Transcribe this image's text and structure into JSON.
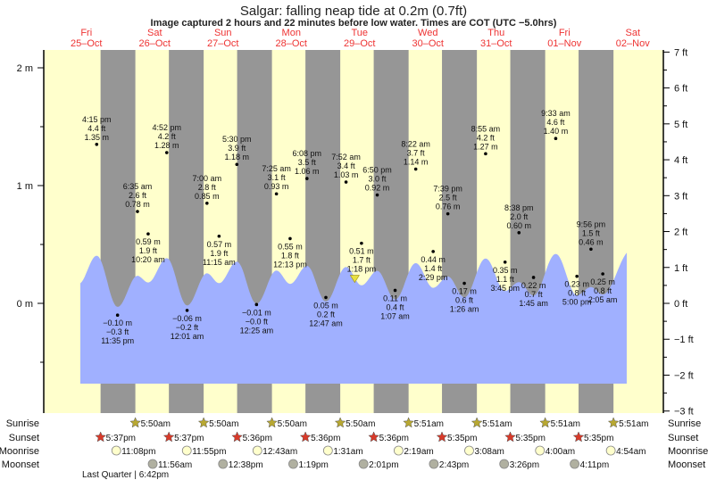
{
  "chart_data": {
    "type": "line",
    "title": "Salgar: falling  neap tide at 0.2m (0.7ft)",
    "subtitle": "Image captured 2 hours and 22 minutes before low water. Times are COT (UTC −5.0hrs)",
    "days": [
      {
        "name": "Fri",
        "date": "25–Oct"
      },
      {
        "name": "Sat",
        "date": "26–Oct"
      },
      {
        "name": "Sun",
        "date": "27–Oct"
      },
      {
        "name": "Mon",
        "date": "28–Oct"
      },
      {
        "name": "Tue",
        "date": "29–Oct"
      },
      {
        "name": "Wed",
        "date": "30–Oct"
      },
      {
        "name": "Thu",
        "date": "31–Oct"
      },
      {
        "name": "Fri",
        "date": "01–Nov"
      },
      {
        "name": "Sat",
        "date": "02–Nov"
      }
    ],
    "left_axis": {
      "unit": "m",
      "ticks": [
        "2 m",
        "1 m",
        "0 m"
      ],
      "values": [
        2,
        1,
        0
      ]
    },
    "right_axis": {
      "unit": "ft",
      "ticks": [
        "7 ft",
        "6 ft",
        "5 ft",
        "4 ft",
        "3 ft",
        "2 ft",
        "1 ft",
        "0 ft",
        "−1 ft",
        "−2 ft",
        "−3 ft"
      ],
      "values": [
        7,
        6,
        5,
        4,
        3,
        2,
        1,
        0,
        -1,
        -2,
        -3
      ]
    },
    "extremes": [
      {
        "day": 0,
        "time": "4:15 pm",
        "ft": "4.4 ft",
        "m": "1.35 m",
        "value": 1.35,
        "type": "high"
      },
      {
        "day": 0,
        "time": "11:35 pm",
        "ft": "−0.3 ft",
        "m": "−0.10 m",
        "value": -0.1,
        "type": "low"
      },
      {
        "day": 1,
        "time": "6:35 am",
        "ft": "2.6 ft",
        "m": "0.78 m",
        "value": 0.78,
        "type": "high"
      },
      {
        "day": 1,
        "time": "10:20 am",
        "ft": "1.9 ft",
        "m": "0.59 m",
        "value": 0.59,
        "type": "low"
      },
      {
        "day": 1,
        "time": "4:52 pm",
        "ft": "4.2 ft",
        "m": "1.28 m",
        "value": 1.28,
        "type": "high"
      },
      {
        "day": 2,
        "time": "12:01 am",
        "ft": "−0.2 ft",
        "m": "−0.06 m",
        "value": -0.06,
        "type": "low"
      },
      {
        "day": 2,
        "time": "7:00 am",
        "ft": "2.8 ft",
        "m": "0.85 m",
        "value": 0.85,
        "type": "high"
      },
      {
        "day": 2,
        "time": "11:15 am",
        "ft": "1.9 ft",
        "m": "0.57 m",
        "value": 0.57,
        "type": "low"
      },
      {
        "day": 2,
        "time": "5:30 pm",
        "ft": "3.9 ft",
        "m": "1.18 m",
        "value": 1.18,
        "type": "high"
      },
      {
        "day": 3,
        "time": "12:25 am",
        "ft": "−0.0 ft",
        "m": "−0.01 m",
        "value": -0.01,
        "type": "low"
      },
      {
        "day": 3,
        "time": "7:25 am",
        "ft": "3.1 ft",
        "m": "0.93 m",
        "value": 0.93,
        "type": "high"
      },
      {
        "day": 3,
        "time": "12:13 pm",
        "ft": "1.8 ft",
        "m": "0.55 m",
        "value": 0.55,
        "type": "low"
      },
      {
        "day": 3,
        "time": "6:08 pm",
        "ft": "3.5 ft",
        "m": "1.06 m",
        "value": 1.06,
        "type": "high"
      },
      {
        "day": 4,
        "time": "12:47 am",
        "ft": "0.2 ft",
        "m": "0.05 m",
        "value": 0.05,
        "type": "low"
      },
      {
        "day": 4,
        "time": "7:52 am",
        "ft": "3.4 ft",
        "m": "1.03 m",
        "value": 1.03,
        "type": "high"
      },
      {
        "day": 4,
        "time": "1:18 pm",
        "ft": "1.7 ft",
        "m": "0.51 m",
        "value": 0.51,
        "type": "low"
      },
      {
        "day": 4,
        "time": "6:50 pm",
        "ft": "3.0 ft",
        "m": "0.92 m",
        "value": 0.92,
        "type": "high"
      },
      {
        "day": 5,
        "time": "1:07 am",
        "ft": "0.4 ft",
        "m": "0.11 m",
        "value": 0.11,
        "type": "low"
      },
      {
        "day": 5,
        "time": "8:22 am",
        "ft": "3.7 ft",
        "m": "1.14 m",
        "value": 1.14,
        "type": "high"
      },
      {
        "day": 5,
        "time": "2:29 pm",
        "ft": "1.4 ft",
        "m": "0.44 m",
        "value": 0.44,
        "type": "low"
      },
      {
        "day": 5,
        "time": "7:39 pm",
        "ft": "2.5 ft",
        "m": "0.76 m",
        "value": 0.76,
        "type": "high"
      },
      {
        "day": 6,
        "time": "1:26 am",
        "ft": "0.6 ft",
        "m": "0.17 m",
        "value": 0.17,
        "type": "low"
      },
      {
        "day": 6,
        "time": "8:55 am",
        "ft": "4.2 ft",
        "m": "1.27 m",
        "value": 1.27,
        "type": "high"
      },
      {
        "day": 6,
        "time": "3:45 pm",
        "ft": "1.1 ft",
        "m": "0.35 m",
        "value": 0.35,
        "type": "low"
      },
      {
        "day": 6,
        "time": "8:38 pm",
        "ft": "2.0 ft",
        "m": "0.60 m",
        "value": 0.6,
        "type": "high"
      },
      {
        "day": 7,
        "time": "1:45 am",
        "ft": "0.7 ft",
        "m": "0.22 m",
        "value": 0.22,
        "type": "low"
      },
      {
        "day": 7,
        "time": "9:33 am",
        "ft": "4.6 ft",
        "m": "1.40 m",
        "value": 1.4,
        "type": "high"
      },
      {
        "day": 7,
        "time": "5:00 pm",
        "ft": "0.8 ft",
        "m": "0.23 m",
        "value": 0.23,
        "type": "low"
      },
      {
        "day": 7,
        "time": "9:56 pm",
        "ft": "1.5 ft",
        "m": "0.46 m",
        "value": 0.46,
        "type": "high"
      },
      {
        "day": 8,
        "time": "2:05 am",
        "ft": "0.8 ft",
        "m": "0.25 m",
        "value": 0.25,
        "type": "low"
      }
    ],
    "current": {
      "day": 4,
      "time": "10:56 am",
      "value": 0.2
    },
    "colors": {
      "day": "#ffffcc",
      "night": "#969696",
      "water": "#a0b0ff",
      "day_label": "#ee3333",
      "sunrise_icon": "#b8a832",
      "sunset_icon": "#d83a2a",
      "moonrise_icon": "#ffffcc",
      "moonset_icon": "#b0b0a0",
      "marker": "#e8e040"
    }
  },
  "astro": {
    "labels": {
      "sunrise": "Sunrise",
      "sunset": "Sunset",
      "moonrise": "Moonrise",
      "moonset": "Moonset"
    },
    "sunrise": [
      {
        "day": 1,
        "time": "5:50am"
      },
      {
        "day": 2,
        "time": "5:50am"
      },
      {
        "day": 3,
        "time": "5:50am"
      },
      {
        "day": 4,
        "time": "5:50am"
      },
      {
        "day": 5,
        "time": "5:51am"
      },
      {
        "day": 6,
        "time": "5:51am"
      },
      {
        "day": 7,
        "time": "5:51am"
      },
      {
        "day": 8,
        "time": "5:51am"
      }
    ],
    "sunset": [
      {
        "day": 0,
        "time": "5:37pm"
      },
      {
        "day": 1,
        "time": "5:37pm"
      },
      {
        "day": 2,
        "time": "5:36pm"
      },
      {
        "day": 3,
        "time": "5:36pm"
      },
      {
        "day": 4,
        "time": "5:36pm"
      },
      {
        "day": 5,
        "time": "5:35pm"
      },
      {
        "day": 6,
        "time": "5:35pm"
      },
      {
        "day": 7,
        "time": "5:35pm"
      }
    ],
    "moonrise": [
      {
        "day": 0,
        "time": "11:08pm"
      },
      {
        "day": 1,
        "time": "11:55pm"
      },
      {
        "day": 3,
        "time": "12:43am"
      },
      {
        "day": 4,
        "time": "1:31am"
      },
      {
        "day": 5,
        "time": "2:19am"
      },
      {
        "day": 6,
        "time": "3:08am"
      },
      {
        "day": 7,
        "time": "4:00am"
      },
      {
        "day": 8,
        "time": "4:54am"
      }
    ],
    "moonset": [
      {
        "day": 1,
        "time": "11:56am"
      },
      {
        "day": 2,
        "time": "12:38pm"
      },
      {
        "day": 3,
        "time": "1:19pm"
      },
      {
        "day": 4,
        "time": "2:01pm"
      },
      {
        "day": 5,
        "time": "2:43pm"
      },
      {
        "day": 6,
        "time": "3:26pm"
      },
      {
        "day": 7,
        "time": "4:11pm"
      }
    ],
    "moon_phase": "Last Quarter | 6:42pm"
  }
}
